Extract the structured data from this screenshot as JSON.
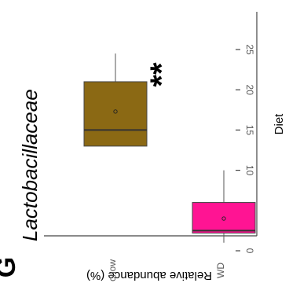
{
  "panel_label": "G",
  "chart_data": {
    "type": "box",
    "title": "Lactobacillaceae",
    "xlabel": "Diet",
    "ylabel": "Relative abundance (%)",
    "ylim": [
      0,
      26
    ],
    "yticks": [
      0,
      5,
      10,
      15,
      20,
      25
    ],
    "yticklabels": [
      "0",
      "5",
      "10",
      "15",
      "20",
      "25"
    ],
    "orientation": "rotated 90° counter-clockwise (value axis runs left-to-right in page space)",
    "categories": [
      "chow",
      "WD"
    ],
    "boxes": [
      {
        "category": "chow",
        "min": 13,
        "q1": 13,
        "median": 15,
        "q3": 21,
        "max": 24.5,
        "mean": 17.3,
        "color": "#8B6914"
      },
      {
        "category": "WD",
        "min": 1,
        "q1": 2.2,
        "median": 2.5,
        "q3": 6,
        "max": 10,
        "mean": 4,
        "color": "#FF1493"
      }
    ],
    "annotations": [
      {
        "category": "WD",
        "text": "**"
      }
    ],
    "grid": false,
    "legend": "none"
  }
}
